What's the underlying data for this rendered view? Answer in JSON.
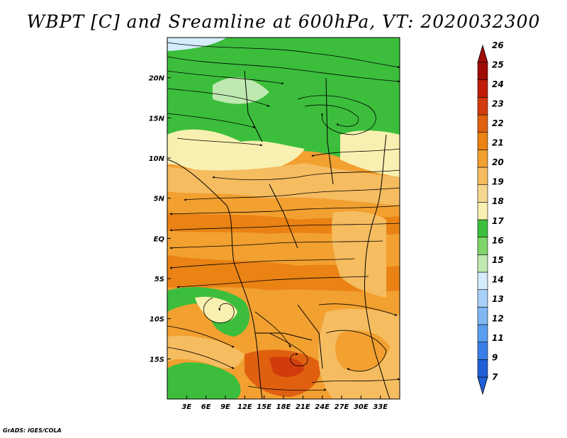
{
  "title": "WBPT [C] and Sreamline at 600hPa, VT: 2020032300",
  "credit": "GrADS: IGES/COLA",
  "map": {
    "lon_range": [
      0,
      36
    ],
    "lat_range": [
      -20,
      25
    ],
    "lon_ticks": [
      {
        "value": 3,
        "label": "3E"
      },
      {
        "value": 6,
        "label": "6E"
      },
      {
        "value": 9,
        "label": "9E"
      },
      {
        "value": 12,
        "label": "12E"
      },
      {
        "value": 15,
        "label": "15E"
      },
      {
        "value": 18,
        "label": "18E"
      },
      {
        "value": 21,
        "label": "21E"
      },
      {
        "value": 24,
        "label": "24E"
      },
      {
        "value": 27,
        "label": "27E"
      },
      {
        "value": 30,
        "label": "30E"
      },
      {
        "value": 33,
        "label": "33E"
      }
    ],
    "lat_ticks": [
      {
        "value": 20,
        "label": "20N"
      },
      {
        "value": 15,
        "label": "15N"
      },
      {
        "value": 10,
        "label": "10N"
      },
      {
        "value": 5,
        "label": "5N"
      },
      {
        "value": 0,
        "label": "EQ"
      },
      {
        "value": -5,
        "label": "5S"
      },
      {
        "value": -10,
        "label": "10S"
      },
      {
        "value": -15,
        "label": "15S"
      }
    ]
  },
  "colorbar": {
    "labels": [
      "7",
      "9",
      "11",
      "12",
      "13",
      "14",
      "15",
      "16",
      "17",
      "18",
      "19",
      "20",
      "21",
      "22",
      "23",
      "24",
      "25",
      "26"
    ],
    "colors": [
      "#1e5fd8",
      "#3a7fe8",
      "#5a9ef0",
      "#80b8f5",
      "#a8d0f8",
      "#d4ecfb",
      "#bfe9b0",
      "#7fd46a",
      "#3cbe3c",
      "#f8f0b0",
      "#f5d890",
      "#f5bc60",
      "#f2a030",
      "#ea8214",
      "#e06010",
      "#d23c0c",
      "#c01c08",
      "#a00c06"
    ]
  }
}
